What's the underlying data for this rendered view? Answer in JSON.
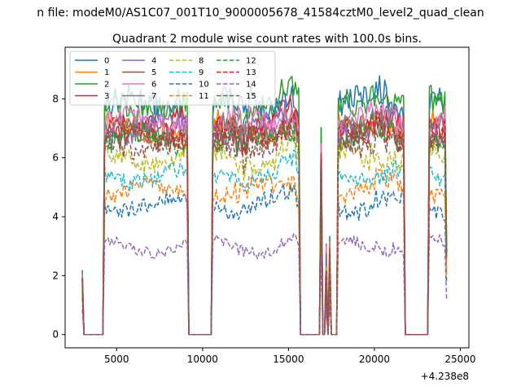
{
  "chart_data": {
    "type": "line",
    "suptitle": "n file: modeM0/AS1C07_001T10_9000005678_41584cztM0_level2_quad_clean",
    "title": "Quadrant 2 module wise count rates with 100.0s bins.",
    "xlabel": "",
    "ylabel": "",
    "x_offset_label": "+4.238e8",
    "xlim": [
      2000,
      25500
    ],
    "ylim": [
      -0.45,
      9.75
    ],
    "x_ticks": [
      5000,
      10000,
      15000,
      20000,
      25000
    ],
    "x_tick_labels": [
      "5000",
      "10000",
      "15000",
      "20000",
      "25000"
    ],
    "y_ticks": [
      0,
      2,
      4,
      6,
      8
    ],
    "y_tick_labels": [
      "0",
      "2",
      "4",
      "6",
      "8"
    ],
    "legend_position": "top-left",
    "legend_columns": 4,
    "segments": [
      {
        "start": 4300,
        "end": 9100
      },
      {
        "start": 10600,
        "end": 15600
      },
      {
        "start": 17900,
        "end": 21700
      },
      {
        "start": 23200,
        "end": 24200
      }
    ],
    "series": [
      {
        "name": "0",
        "color": "#1f77b4",
        "dash": false,
        "level": 7.8,
        "noise": 0.45
      },
      {
        "name": "1",
        "color": "#ff7f0e",
        "dash": false,
        "level": 7.0,
        "noise": 0.4
      },
      {
        "name": "2",
        "color": "#2ca02c",
        "dash": false,
        "level": 7.8,
        "noise": 0.45
      },
      {
        "name": "3",
        "color": "#d62728",
        "dash": false,
        "level": 7.1,
        "noise": 0.4
      },
      {
        "name": "4",
        "color": "#9467bd",
        "dash": false,
        "level": 7.0,
        "noise": 0.4
      },
      {
        "name": "5",
        "color": "#8c564b",
        "dash": false,
        "level": 6.7,
        "noise": 0.4
      },
      {
        "name": "6",
        "color": "#e377c2",
        "dash": false,
        "level": 7.2,
        "noise": 0.4
      },
      {
        "name": "7",
        "color": "#7f7f7f",
        "dash": false,
        "level": 6.9,
        "noise": 0.4
      },
      {
        "name": "8",
        "color": "#bcbd22",
        "dash": true,
        "level": 6.0,
        "noise": 0.35
      },
      {
        "name": "9",
        "color": "#17becf",
        "dash": true,
        "level": 5.4,
        "noise": 0.3
      },
      {
        "name": "10",
        "color": "#1f77b4",
        "dash": true,
        "level": 4.4,
        "noise": 0.3
      },
      {
        "name": "11",
        "color": "#ff7f0e",
        "dash": true,
        "level": 4.9,
        "noise": 0.3
      },
      {
        "name": "12",
        "color": "#2ca02c",
        "dash": true,
        "level": 6.6,
        "noise": 0.4
      },
      {
        "name": "13",
        "color": "#d62728",
        "dash": true,
        "level": 6.8,
        "noise": 0.4
      },
      {
        "name": "14",
        "color": "#9467bd",
        "dash": true,
        "level": 3.0,
        "noise": 0.2
      },
      {
        "name": "15",
        "color": "#8c564b",
        "dash": true,
        "level": 6.5,
        "noise": 0.4
      }
    ]
  }
}
